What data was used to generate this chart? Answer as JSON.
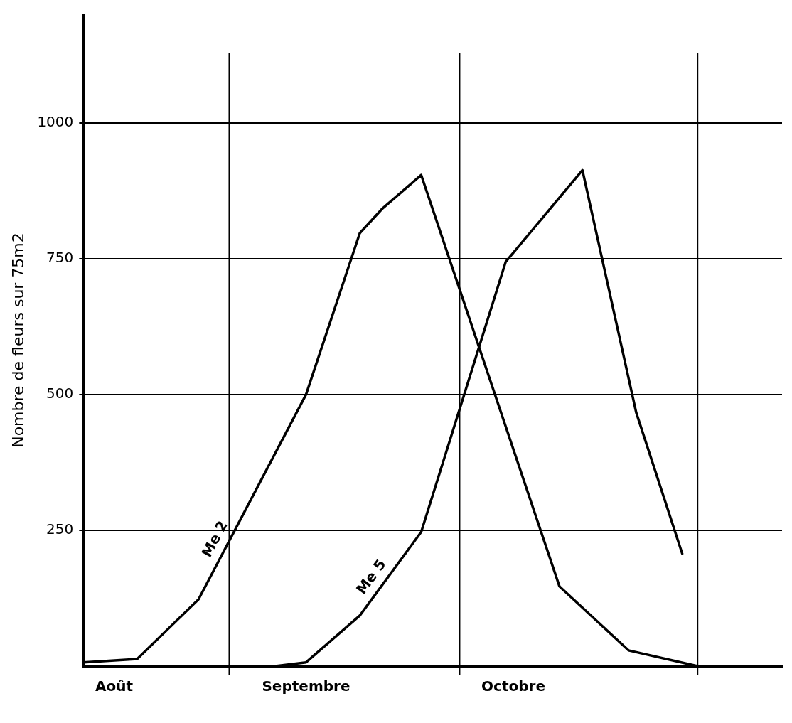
{
  "chart_data": {
    "type": "line",
    "ylabel": "Nombre de fleurs sur 75m2",
    "xlim": [
      "--08-13",
      "--11-12"
    ],
    "xticks": [
      {
        "value": "--08-17",
        "label": "Août"
      },
      {
        "value": "--09-11",
        "label": "Septembre"
      },
      {
        "value": "--10-08",
        "label": "Octobre"
      }
    ],
    "ylim": [
      0,
      1200
    ],
    "yticks": [
      250,
      500,
      750,
      1000
    ],
    "grid": "y",
    "legend": false,
    "marker": "none",
    "line_style": "solid",
    "ref_lines": [
      {
        "axis": "x",
        "value": "--09-01",
        "color": "#000000"
      },
      {
        "axis": "x",
        "value": "--10-01",
        "color": "#000000"
      },
      {
        "axis": "x",
        "value": "--11-01",
        "color": "#000000"
      }
    ],
    "series": [
      {
        "name": "Me 2",
        "color": "#000000",
        "x": [
          "--08-13",
          "--08-20",
          "--08-28",
          "--09-11",
          "--09-18",
          "--09-21",
          "--09-26",
          "--10-14",
          "--10-23",
          "--11-01"
        ],
        "values": [
          7,
          13,
          123,
          500,
          797,
          843,
          904,
          147,
          29,
          0
        ]
      },
      {
        "name": "Me 5",
        "color": "#000000",
        "x": [
          "--09-07",
          "--09-11",
          "--09-18",
          "--09-26",
          "--10-07",
          "--10-17",
          "--10-24",
          "--10-30"
        ],
        "values": [
          0,
          7,
          93,
          247,
          744,
          913,
          467,
          207
        ]
      }
    ]
  }
}
